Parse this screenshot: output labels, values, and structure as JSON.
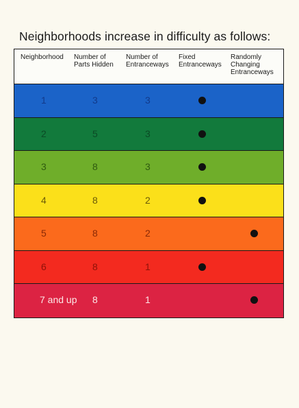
{
  "title": "Neighborhoods increase in difficulty as follows:",
  "headers": {
    "neighborhood": "Neighborhood",
    "parts_hidden": "Number of\nParts Hidden",
    "entranceways": "Number of\nEntranceways",
    "fixed": "Fixed\nEntranceways",
    "random": "Randomly\nChanging\nEntranceways"
  },
  "rows": [
    {
      "neighborhood": "1",
      "parts": "3",
      "entranceways": "3",
      "mark": "fixed",
      "color": "#1b63c8",
      "text_color": "#123a8a"
    },
    {
      "neighborhood": "2",
      "parts": "5",
      "entranceways": "3",
      "mark": "fixed",
      "color": "#127a3c",
      "text_color": "#0b4a25"
    },
    {
      "neighborhood": "3",
      "parts": "8",
      "entranceways": "3",
      "mark": "fixed",
      "color": "#6fae2a",
      "text_color": "#2f5a10"
    },
    {
      "neighborhood": "4",
      "parts": "8",
      "entranceways": "2",
      "mark": "fixed",
      "color": "#fbe01a",
      "text_color": "#6a5a08"
    },
    {
      "neighborhood": "5",
      "parts": "8",
      "entranceways": "2",
      "mark": "random",
      "color": "#fb6a1c",
      "text_color": "#8a2a06"
    },
    {
      "neighborhood": "6",
      "parts": "8",
      "entranceways": "1",
      "mark": "fixed",
      "color": "#f32a1f",
      "text_color": "#8e1208"
    },
    {
      "neighborhood": "7 and up",
      "parts": "8",
      "entranceways": "1",
      "mark": "random",
      "color": "#dc2343",
      "text_color": "#fde7e7"
    }
  ]
}
